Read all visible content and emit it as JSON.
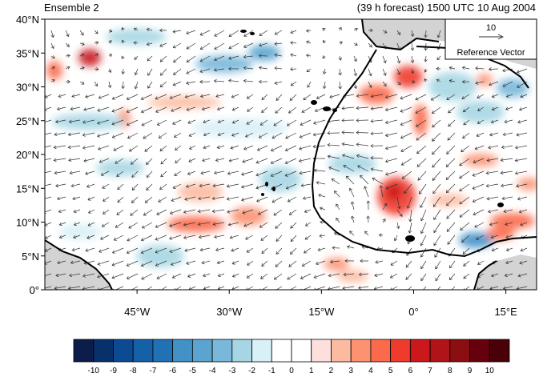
{
  "header": {
    "left_title": "Ensemble 2",
    "right_title": "(39 h forecast) 1500 UTC 10 Aug 2004"
  },
  "map": {
    "lon_range": [
      -60,
      20
    ],
    "lat_range": [
      0,
      40
    ],
    "lat_ticks": [
      {
        "value": 40,
        "label": "40°N"
      },
      {
        "value": 35,
        "label": "35°N"
      },
      {
        "value": 30,
        "label": "30°N"
      },
      {
        "value": 25,
        "label": "25°N"
      },
      {
        "value": 20,
        "label": "20°N"
      },
      {
        "value": 15,
        "label": "15°N"
      },
      {
        "value": 10,
        "label": "10°N"
      },
      {
        "value": 5,
        "label": "5°N"
      },
      {
        "value": 0,
        "label": "0°"
      }
    ],
    "lon_ticks": [
      {
        "value": -45,
        "label": "45°W"
      },
      {
        "value": -30,
        "label": "30°W"
      },
      {
        "value": -15,
        "label": "15°W"
      },
      {
        "value": 0,
        "label": "0°"
      },
      {
        "value": 15,
        "label": "15°E"
      }
    ],
    "reference_vector": {
      "magnitude": "10",
      "label": "Reference Vector"
    },
    "colors": {
      "land_fill": "#d3d3d3",
      "coast": "#000000",
      "vector": "#333333"
    }
  },
  "colorbar": {
    "labels": [
      "-10",
      "-9",
      "-8",
      "-7",
      "-6",
      "-5",
      "-4",
      "-3",
      "-2",
      "-1",
      "0",
      "1",
      "2",
      "3",
      "4",
      "5",
      "6",
      "7",
      "8",
      "9",
      "10"
    ],
    "colors": [
      "#0b1d48",
      "#08306b",
      "#0c4a93",
      "#1561a8",
      "#2171b5",
      "#4292c6",
      "#5ba4cf",
      "#79b8da",
      "#a6d6e3",
      "#d8f0f7",
      "#ffffff",
      "#ffffff",
      "#fde0dd",
      "#fcbba1",
      "#fc9272",
      "#fb6a4a",
      "#ef3b2c",
      "#cb181d",
      "#b01419",
      "#8b0e12",
      "#67000d",
      "#4a0008"
    ]
  }
}
